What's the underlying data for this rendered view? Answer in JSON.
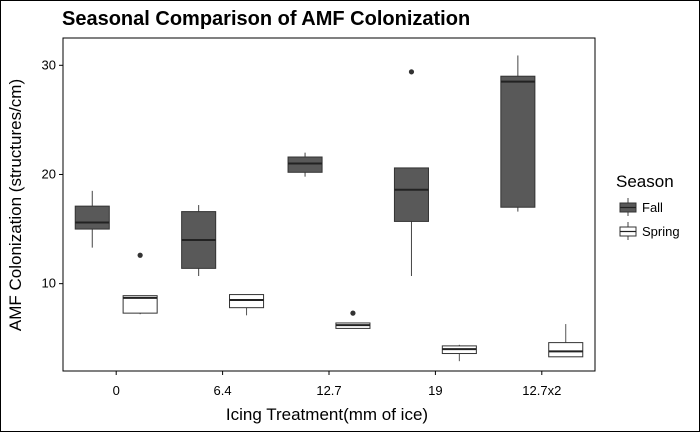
{
  "chart_data": {
    "type": "boxplot",
    "title": "Seasonal Comparison of AMF Colonization",
    "xlabel": "Icing Treatment(mm of ice)",
    "ylabel": "AMF Colonization (structures/cm)",
    "categories": [
      "0",
      "6.4",
      "12.7",
      "19",
      "12.7x2"
    ],
    "ylim": [
      2,
      32.5
    ],
    "yticks": [
      10,
      20,
      30
    ],
    "grid": false,
    "legend": {
      "title": "Season",
      "position": "right"
    },
    "series": [
      {
        "name": "Fall",
        "color": "#595959",
        "boxes": [
          {
            "whisker_low": 13.3,
            "q1": 15.0,
            "median": 15.6,
            "q3": 17.1,
            "whisker_high": 18.5,
            "outliers": []
          },
          {
            "whisker_low": 10.7,
            "q1": 11.4,
            "median": 14.0,
            "q3": 16.6,
            "whisker_high": 17.2,
            "outliers": []
          },
          {
            "whisker_low": 19.8,
            "q1": 20.2,
            "median": 21.0,
            "q3": 21.6,
            "whisker_high": 22.0,
            "outliers": []
          },
          {
            "whisker_low": 10.7,
            "q1": 15.7,
            "median": 18.6,
            "q3": 20.6,
            "whisker_high": 20.6,
            "outliers": [
              29.4
            ]
          },
          {
            "whisker_low": 16.6,
            "q1": 17.0,
            "median": 28.5,
            "q3": 29.0,
            "whisker_high": 30.9,
            "outliers": []
          }
        ]
      },
      {
        "name": "Spring",
        "color": "#ffffff",
        "boxes": [
          {
            "whisker_low": 7.2,
            "q1": 7.3,
            "median": 8.7,
            "q3": 8.9,
            "whisker_high": 8.9,
            "outliers": [
              12.6
            ]
          },
          {
            "whisker_low": 7.1,
            "q1": 7.8,
            "median": 8.5,
            "q3": 9.0,
            "whisker_high": 9.0,
            "outliers": []
          },
          {
            "whisker_low": 5.9,
            "q1": 5.9,
            "median": 6.2,
            "q3": 6.4,
            "whisker_high": 6.4,
            "outliers": [
              7.3
            ]
          },
          {
            "whisker_low": 2.9,
            "q1": 3.6,
            "median": 4.0,
            "q3": 4.3,
            "whisker_high": 4.4,
            "outliers": []
          },
          {
            "whisker_low": 3.3,
            "q1": 3.3,
            "median": 3.8,
            "q3": 4.6,
            "whisker_high": 6.3,
            "outliers": []
          }
        ]
      }
    ]
  }
}
